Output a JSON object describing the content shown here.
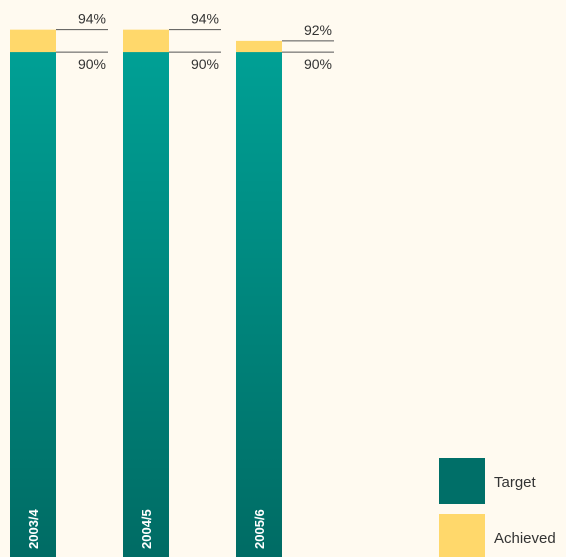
{
  "chart_data": {
    "type": "bar",
    "categories": [
      "2003/4",
      "2004/5",
      "2005/6"
    ],
    "series": [
      {
        "name": "Achieved",
        "color": "#ffd86b",
        "values": [
          94,
          94,
          92
        ],
        "value_labels": [
          "94%",
          "94%",
          "92%"
        ]
      },
      {
        "name": "Target",
        "color": "#00a095",
        "values": [
          90,
          90,
          90
        ],
        "value_labels": [
          "90%",
          "90%",
          "90%"
        ]
      }
    ],
    "ylim": [
      0,
      100
    ],
    "legend": "bottom-right"
  }
}
